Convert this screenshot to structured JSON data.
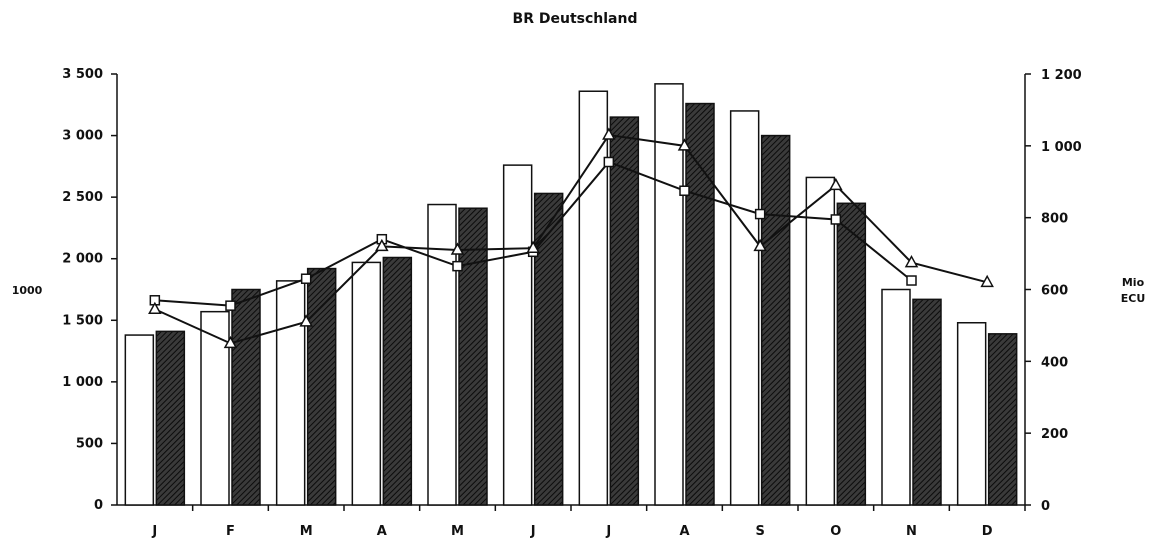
{
  "chart_data": {
    "type": "bar",
    "title": "BR Deutschland",
    "categories": [
      "J",
      "F",
      "M",
      "A",
      "M",
      "J",
      "J",
      "A",
      "S",
      "O",
      "N",
      "D"
    ],
    "left_axis": {
      "unit_label": "1000",
      "ylim": [
        0,
        3500
      ],
      "ticks": [
        0,
        500,
        1000,
        1500,
        2000,
        2500,
        3000,
        3500
      ],
      "tick_labels": [
        "0",
        "500",
        "1 000",
        "1 500",
        "2 000",
        "2 500",
        "3 000",
        "3 500"
      ]
    },
    "right_axis": {
      "unit_label_line1": "Mio",
      "unit_label_line2": "ECU",
      "ylim": [
        0,
        1200
      ],
      "ticks": [
        0,
        200,
        400,
        600,
        800,
        1000,
        1200
      ],
      "tick_labels": [
        "0",
        "200",
        "400",
        "600",
        "800",
        "1 000",
        "1 200"
      ]
    },
    "bar_series": [
      {
        "fill": "white",
        "axis": "left",
        "values": [
          1380,
          1570,
          1820,
          1970,
          2440,
          2760,
          3360,
          3420,
          3200,
          2660,
          1750,
          1480
        ]
      },
      {
        "fill": "dark-hatched",
        "axis": "left",
        "values": [
          1410,
          1750,
          1920,
          2010,
          2410,
          2530,
          3150,
          3260,
          3000,
          2450,
          1670,
          1390
        ]
      }
    ],
    "line_series": [
      {
        "marker": "square",
        "axis": "right",
        "values": [
          570,
          555,
          630,
          740,
          665,
          705,
          955,
          875,
          810,
          795,
          625,
          null
        ]
      },
      {
        "marker": "triangle",
        "axis": "right",
        "values": [
          545,
          450,
          510,
          720,
          710,
          715,
          1030,
          1000,
          720,
          890,
          675,
          620
        ]
      }
    ],
    "legend": "none",
    "grid": false
  }
}
